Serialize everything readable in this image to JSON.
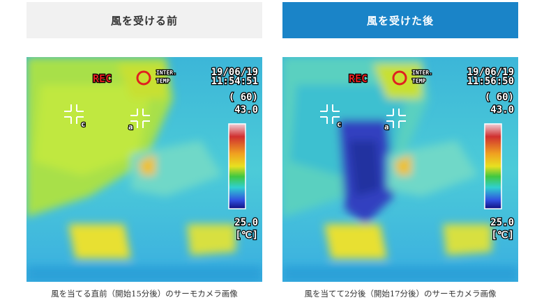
{
  "panels": [
    {
      "header": "風を受ける前",
      "rec": "REC",
      "inter": "INTER.",
      "temp": "TEMP",
      "date": "19/06/19",
      "time": "11:54:51",
      "emissivity": "( 60)",
      "max": "43.0",
      "min": "25.0",
      "unit": "[℃]",
      "marker_a": "a",
      "marker_c": "c",
      "caption": "風を当てる直前（開始15分後）のサーモカメラ画像"
    },
    {
      "header": "風を受けた後",
      "rec": "REC",
      "inter": "INTER.",
      "temp": "TEMP",
      "date": "19/06/19",
      "time": "11:56:50",
      "emissivity": "( 60)",
      "max": "43.0",
      "min": "25.0",
      "unit": "[℃]",
      "marker_a": "a",
      "marker_c": "c",
      "caption": "風を当てて2分後（開始17分後）のサーモカメラ画像"
    }
  ]
}
